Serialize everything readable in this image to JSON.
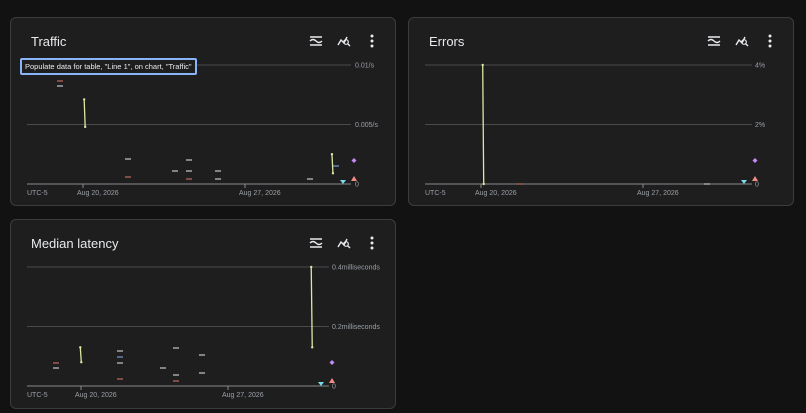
{
  "colors": {
    "series_line": "#d7e9a3",
    "gridline": "#4a4a4c",
    "marker_diamond": "#c58af9",
    "marker_down": "#78d9ec",
    "marker_up": "#f28b82",
    "dash_red": "#e07a6e",
    "dash_white": "#e8eaed",
    "dash_blue": "#8ab4f8"
  },
  "icons": [
    "legend-icon",
    "explore-icon",
    "more-vert-icon"
  ],
  "cards": [
    {
      "title": "Traffic",
      "tooltip": "Populate data for table, \"Line 1\", on chart, \"Traffic\"",
      "chart_data": {
        "type": "line",
        "y_ticks": [
          "0.01/s",
          "0.005/s",
          "0"
        ],
        "ylim": [
          0,
          0.01
        ],
        "x_ticks": [
          "UTC-5",
          "Aug 20, 2026",
          "Aug 27, 2026"
        ],
        "series": [
          {
            "values": [
              {
                "x": "2026-08-19",
                "y": 0.0071
              },
              {
                "x": "2026-08-19",
                "y": 0.0048
              },
              {
                "x": "2026-09-01",
                "y": 0.0025
              },
              {
                "x": "2026-09-01",
                "y": 0.0009
              }
            ]
          }
        ]
      }
    },
    {
      "title": "Errors",
      "chart_data": {
        "type": "line",
        "y_ticks": [
          "4%",
          "2%",
          "0"
        ],
        "ylim": [
          0,
          4
        ],
        "x_ticks": [
          "UTC-5",
          "Aug 20, 2026",
          "Aug 27, 2026"
        ],
        "series": [
          {
            "values": [
              {
                "x": "2026-08-19",
                "y": 4
              },
              {
                "x": "2026-08-19",
                "y": 0
              }
            ]
          }
        ]
      }
    },
    {
      "title": "Median latency",
      "chart_data": {
        "type": "line",
        "y_ticks": [
          "0.4milliseconds",
          "0.2milliseconds",
          "0"
        ],
        "ylim": [
          0,
          0.4
        ],
        "x_ticks": [
          "UTC-5",
          "Aug 20, 2026",
          "Aug 27, 2026"
        ],
        "series": [
          {
            "values": [
              {
                "x": "2026-08-19",
                "y": 0.13
              },
              {
                "x": "2026-08-19",
                "y": 0.08
              },
              {
                "x": "2026-09-01",
                "y": 0.4
              },
              {
                "x": "2026-09-01",
                "y": 0.13
              }
            ]
          }
        ]
      }
    }
  ]
}
